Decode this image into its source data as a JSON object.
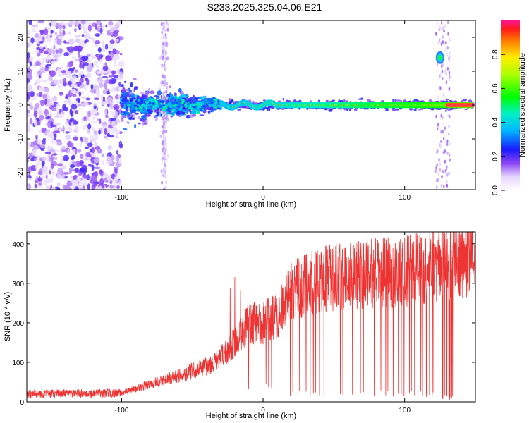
{
  "title": "S233.2025.325.04.06.E21",
  "chart_data": [
    {
      "type": "heatmap",
      "xlabel": "Height of straight line (km)",
      "ylabel": "Frequency (Hz)",
      "xlim": [
        -167,
        150
      ],
      "ylim": [
        -25,
        25
      ],
      "xticks": [
        -100,
        0,
        100
      ],
      "yticks": [
        -20,
        -10,
        0,
        10,
        20
      ],
      "colorbar": {
        "label": "Normalized spectral amplitude",
        "range": [
          0.0,
          1.0
        ],
        "ticks": [
          "0.0",
          "0.2",
          "0.4",
          "0.6",
          "0.8"
        ]
      },
      "ridge": {
        "frequency_hz": 0,
        "from_km": -30,
        "to_km": 148,
        "peak_amplitude": 1.0
      },
      "noise_region_km": [
        -167,
        -100
      ],
      "spot": {
        "height_km": 125,
        "frequency_hz": 14
      }
    },
    {
      "type": "line",
      "xlabel": "Height of straight line (km)",
      "ylabel": "SNR (10 * v/v)",
      "xlim": [
        -167,
        150
      ],
      "ylim": [
        0,
        430
      ],
      "xticks": [
        -100,
        0,
        100
      ],
      "yticks": [
        0,
        100,
        200,
        300,
        400
      ],
      "color": "#ee3333",
      "trend": {
        "x": [
          -167,
          -100,
          -80,
          -60,
          -40,
          -30,
          -20,
          -10,
          0,
          10,
          20,
          40,
          60,
          80,
          100,
          120,
          130,
          140,
          150
        ],
        "y": [
          20,
          22,
          45,
          65,
          90,
          110,
          150,
          200,
          200,
          220,
          280,
          310,
          320,
          325,
          330,
          345,
          355,
          360,
          370
        ]
      }
    }
  ]
}
